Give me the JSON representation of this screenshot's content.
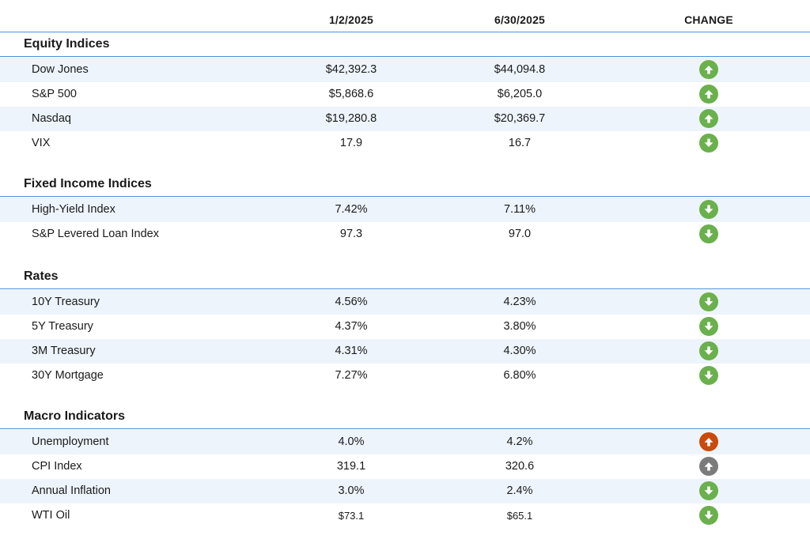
{
  "header": {
    "col1": "1/2/2025",
    "col2": "6/30/2025",
    "col3": "CHANGE"
  },
  "colors": {
    "rule": "#4a90d9",
    "shade": "#edf4fb",
    "green": "#6ab04c",
    "orange": "#c94a0a",
    "gray": "#7b7b7b"
  },
  "sections": [
    {
      "title": "Equity Indices",
      "rows": [
        {
          "label": "Dow Jones",
          "v1": "$42,392.3",
          "v2": "$44,094.8",
          "direction": "up",
          "color": "green",
          "icon": "arrow-up-icon"
        },
        {
          "label": "S&P 500",
          "v1": "$5,868.6",
          "v2": "$6,205.0",
          "direction": "up",
          "color": "green",
          "icon": "arrow-up-icon"
        },
        {
          "label": "Nasdaq",
          "v1": "$19,280.8",
          "v2": "$20,369.7",
          "direction": "up",
          "color": "green",
          "icon": "arrow-up-icon"
        },
        {
          "label": "VIX",
          "v1": "17.9",
          "v2": "16.7",
          "direction": "down",
          "color": "green",
          "icon": "arrow-down-icon"
        }
      ]
    },
    {
      "title": "Fixed Income Indices",
      "rows": [
        {
          "label": "High-Yield Index",
          "v1": "7.42%",
          "v2": "7.11%",
          "direction": "down",
          "color": "green",
          "icon": "arrow-down-icon"
        },
        {
          "label": "S&P Levered Loan Index",
          "v1": "97.3",
          "v2": "97.0",
          "direction": "down",
          "color": "green",
          "icon": "arrow-down-icon"
        }
      ]
    },
    {
      "title": "Rates",
      "rows": [
        {
          "label": "10Y Treasury",
          "v1": "4.56%",
          "v2": "4.23%",
          "direction": "down",
          "color": "green",
          "icon": "arrow-down-icon"
        },
        {
          "label": "5Y Treasury",
          "v1": "4.37%",
          "v2": "3.80%",
          "direction": "down",
          "color": "green",
          "icon": "arrow-down-icon"
        },
        {
          "label": "3M Treasury",
          "v1": "4.31%",
          "v2": "4.30%",
          "direction": "down",
          "color": "green",
          "icon": "arrow-down-icon"
        },
        {
          "label": "30Y Mortgage",
          "v1": "7.27%",
          "v2": "6.80%",
          "direction": "down",
          "color": "green",
          "icon": "arrow-down-icon"
        }
      ]
    },
    {
      "title": "Macro Indicators",
      "rows": [
        {
          "label": "Unemployment",
          "v1": "4.0%",
          "v2": "4.2%",
          "direction": "up",
          "color": "orange",
          "icon": "arrow-up-icon"
        },
        {
          "label": "CPI Index",
          "v1": "319.1",
          "v2": "320.6",
          "direction": "up",
          "color": "gray",
          "icon": "arrow-up-icon"
        },
        {
          "label": "Annual Inflation",
          "v1": "3.0%",
          "v2": "2.4%",
          "direction": "down",
          "color": "green",
          "icon": "arrow-down-icon"
        },
        {
          "label": "WTI Oil",
          "v1": "$73.1",
          "v2": "$65.1",
          "direction": "down",
          "color": "green",
          "icon": "arrow-down-icon",
          "small": true
        }
      ]
    }
  ]
}
